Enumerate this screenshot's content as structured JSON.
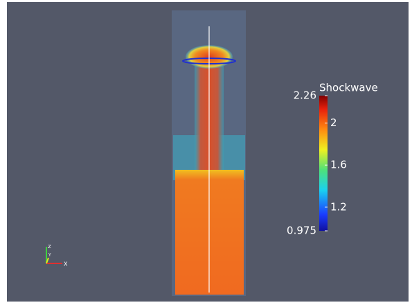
{
  "colorbar": {
    "title": "Shockwave",
    "range": [
      0.975,
      2.26
    ],
    "ticks": [
      2,
      1.6,
      1.2
    ]
  },
  "triad": {
    "z": "Z",
    "y": "Y",
    "x": "X"
  }
}
